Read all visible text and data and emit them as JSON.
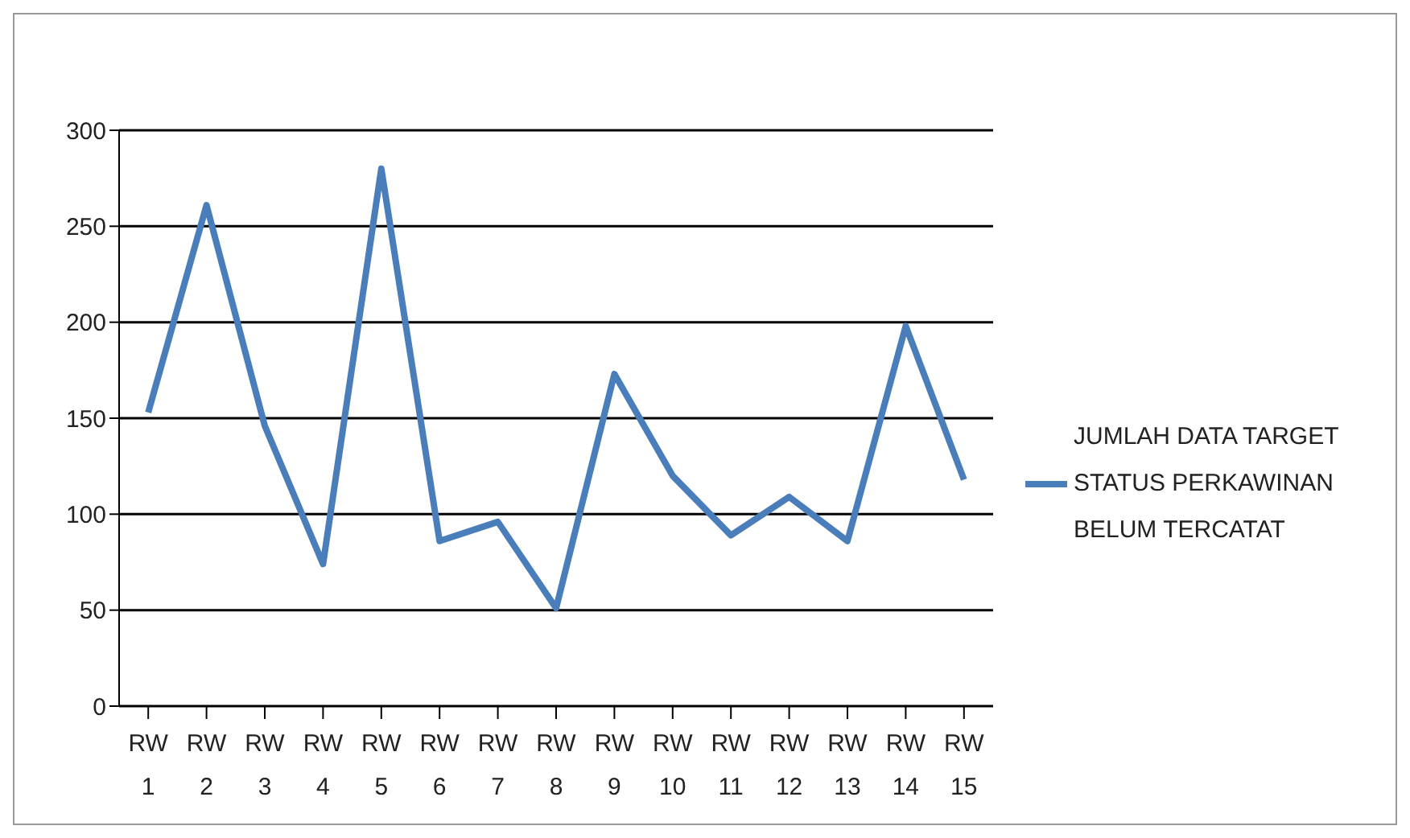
{
  "chart_data": {
    "type": "line",
    "categories": [
      "RW 1",
      "RW 2",
      "RW 3",
      "RW 4",
      "RW 5",
      "RW 6",
      "RW 7",
      "RW 8",
      "RW 9",
      "RW 10",
      "RW 11",
      "RW 12",
      "RW 13",
      "RW 14",
      "RW 15"
    ],
    "series": [
      {
        "name": "JUMLAH DATA TARGET STATUS PERKAWINAN BELUM TERCATAT",
        "color": "#4a7ebb",
        "values": [
          153,
          261,
          146,
          74,
          280,
          86,
          96,
          51,
          173,
          120,
          89,
          109,
          86,
          198,
          118
        ]
      }
    ],
    "ylim": [
      0,
      300
    ],
    "yticks": [
      0,
      50,
      100,
      150,
      200,
      250,
      300
    ],
    "grid": "y",
    "legend": "right",
    "marker": "none",
    "line_style": "solid"
  }
}
